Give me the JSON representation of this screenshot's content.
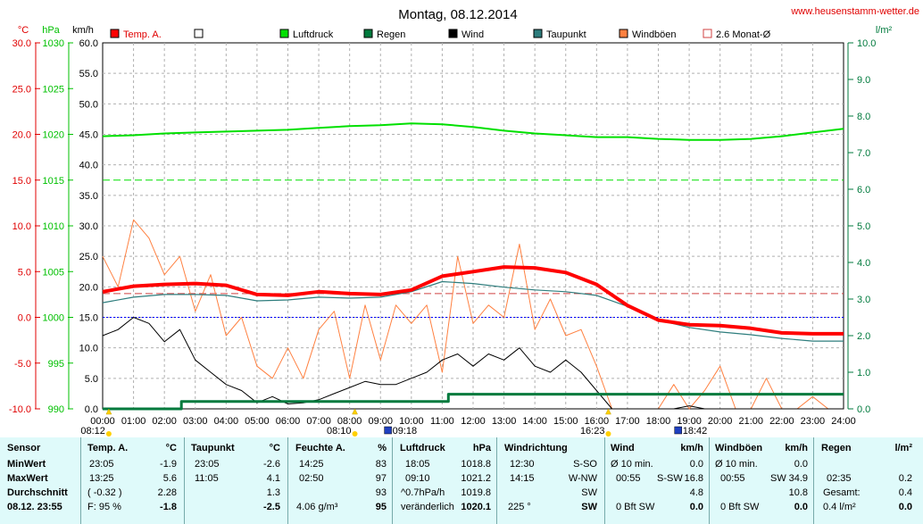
{
  "title": "Montag, 08.12.2014",
  "site": "www.heusenstamm-wetter.de",
  "units": {
    "c": "°C",
    "hpa": "hPa",
    "kmh": "km/h",
    "lm2": "l/m²"
  },
  "colors": {
    "temp": "#ff0000",
    "pressure": "#00e000",
    "rain": "#007a3d",
    "wind": "#000000",
    "dew": "#2e7d7d",
    "gust": "#ff8040",
    "avg": "#d04040"
  },
  "legend": [
    {
      "label": "Temp. A.",
      "color": "#ff0000",
      "style": "box"
    },
    {
      "label": "",
      "color": "#ffffff",
      "style": "box"
    },
    {
      "label": "Luftdruck",
      "color": "#00e000",
      "style": "box"
    },
    {
      "label": "Regen",
      "color": "#007a3d",
      "style": "box"
    },
    {
      "label": "Wind",
      "color": "#000000",
      "style": "box"
    },
    {
      "label": "Taupunkt",
      "color": "#2e7d7d",
      "style": "box"
    },
    {
      "label": "Windböen",
      "color": "#ff8040",
      "style": "box"
    },
    {
      "label": "2.6 Monat-Ø",
      "color": "#d04040",
      "style": "open"
    }
  ],
  "chart_data": {
    "type": "line",
    "title": "Montag, 08.12.2014",
    "x_ticks": [
      "00:00",
      "01:00",
      "02:00",
      "03:00",
      "04:00",
      "05:00",
      "06:00",
      "07:00",
      "08:00",
      "09:00",
      "10:00",
      "11:00",
      "12:00",
      "13:00",
      "14:00",
      "15:00",
      "16:00",
      "17:00",
      "18:00",
      "19:00",
      "20:00",
      "21:00",
      "22:00",
      "23:00",
      "24:00"
    ],
    "y_temp_ticks": [
      "30.0",
      "25.0",
      "20.0",
      "15.0",
      "10.0",
      "5.0",
      "0.0",
      "-5.0",
      "-10.0"
    ],
    "y_press_ticks": [
      "1030",
      "1025",
      "1020",
      "1015",
      "1010",
      "1005",
      "1000",
      "995",
      "990"
    ],
    "y_wind_ticks": [
      "60.0",
      "55.0",
      "50.0",
      "45.0",
      "40.0",
      "35.0",
      "30.0",
      "25.0",
      "20.0",
      "15.0",
      "10.0",
      "5.0",
      "0.0"
    ],
    "y_rain_ticks": [
      "10.0",
      "9.0",
      "8.0",
      "7.0",
      "6.0",
      "5.0",
      "4.0",
      "3.0",
      "2.0",
      "1.0",
      "0.0"
    ],
    "temp_range": [
      -10,
      30
    ],
    "wind_range": [
      0,
      60
    ],
    "pressure_range": [
      990,
      1030
    ],
    "rain_range": [
      0,
      10
    ],
    "reference_lines": [
      {
        "name": "2.6 Monat-Ø",
        "value": 2.6,
        "axis": "temp"
      },
      {
        "name": "",
        "value": 0.0,
        "axis": "temp"
      },
      {
        "name": "",
        "value": 1015,
        "axis": "pressure"
      }
    ],
    "series": [
      {
        "name": "Temp. A.",
        "axis": "temp",
        "points": [
          [
            0,
            2.8
          ],
          [
            1,
            3.4
          ],
          [
            2,
            3.6
          ],
          [
            3,
            3.7
          ],
          [
            4,
            3.5
          ],
          [
            5,
            2.5
          ],
          [
            6,
            2.4
          ],
          [
            7,
            2.8
          ],
          [
            8,
            2.6
          ],
          [
            9,
            2.5
          ],
          [
            10,
            3.0
          ],
          [
            11,
            4.5
          ],
          [
            12,
            5.0
          ],
          [
            13,
            5.5
          ],
          [
            14,
            5.4
          ],
          [
            15,
            4.9
          ],
          [
            16,
            3.6
          ],
          [
            17,
            1.3
          ],
          [
            18,
            -0.3
          ],
          [
            19,
            -0.8
          ],
          [
            20,
            -0.9
          ],
          [
            21,
            -1.2
          ],
          [
            22,
            -1.7
          ],
          [
            23,
            -1.8
          ],
          [
            24,
            -1.8
          ]
        ]
      },
      {
        "name": "Taupunkt",
        "axis": "temp",
        "points": [
          [
            0,
            1.6
          ],
          [
            1,
            2.2
          ],
          [
            2,
            2.5
          ],
          [
            3,
            2.5
          ],
          [
            4,
            2.4
          ],
          [
            5,
            1.8
          ],
          [
            6,
            1.9
          ],
          [
            7,
            2.2
          ],
          [
            8,
            2.1
          ],
          [
            9,
            2.2
          ],
          [
            10,
            2.8
          ],
          [
            11,
            3.9
          ],
          [
            12,
            3.7
          ],
          [
            13,
            3.3
          ],
          [
            14,
            3.0
          ],
          [
            15,
            2.8
          ],
          [
            16,
            2.4
          ],
          [
            17,
            1.2
          ],
          [
            18,
            -0.3
          ],
          [
            19,
            -1.1
          ],
          [
            20,
            -1.6
          ],
          [
            21,
            -1.9
          ],
          [
            22,
            -2.3
          ],
          [
            23,
            -2.6
          ],
          [
            24,
            -2.6
          ]
        ]
      },
      {
        "name": "Luftdruck",
        "axis": "pressure",
        "points": [
          [
            0,
            1019.8
          ],
          [
            1,
            1019.9
          ],
          [
            2,
            1020.1
          ],
          [
            3,
            1020.2
          ],
          [
            4,
            1020.3
          ],
          [
            5,
            1020.4
          ],
          [
            6,
            1020.5
          ],
          [
            7,
            1020.7
          ],
          [
            8,
            1020.9
          ],
          [
            9,
            1021.0
          ],
          [
            10,
            1021.2
          ],
          [
            11,
            1021.1
          ],
          [
            12,
            1020.8
          ],
          [
            13,
            1020.4
          ],
          [
            14,
            1020.1
          ],
          [
            15,
            1019.9
          ],
          [
            16,
            1019.7
          ],
          [
            17,
            1019.7
          ],
          [
            18,
            1019.5
          ],
          [
            19,
            1019.4
          ],
          [
            20,
            1019.4
          ],
          [
            21,
            1019.5
          ],
          [
            22,
            1019.8
          ],
          [
            23,
            1020.2
          ],
          [
            24,
            1020.6
          ]
        ]
      },
      {
        "name": "Wind",
        "axis": "wind",
        "points": [
          [
            0,
            12
          ],
          [
            0.5,
            13
          ],
          [
            1,
            15
          ],
          [
            1.5,
            14
          ],
          [
            2,
            11
          ],
          [
            2.5,
            13
          ],
          [
            3,
            8
          ],
          [
            3.5,
            6
          ],
          [
            4,
            4
          ],
          [
            4.5,
            3
          ],
          [
            5,
            1
          ],
          [
            5.5,
            2
          ],
          [
            6,
            0.8
          ],
          [
            6.5,
            1
          ],
          [
            7,
            1.5
          ],
          [
            7.5,
            2.5
          ],
          [
            8,
            3.5
          ],
          [
            8.5,
            4.5
          ],
          [
            9,
            4
          ],
          [
            9.5,
            4
          ],
          [
            10,
            5
          ],
          [
            10.5,
            6
          ],
          [
            11,
            8
          ],
          [
            11.5,
            9
          ],
          [
            12,
            7
          ],
          [
            12.5,
            9
          ],
          [
            13,
            8
          ],
          [
            13.5,
            10
          ],
          [
            14,
            7
          ],
          [
            14.5,
            6
          ],
          [
            15,
            8
          ],
          [
            15.5,
            6
          ],
          [
            16,
            3
          ],
          [
            16.5,
            0
          ],
          [
            17,
            0
          ],
          [
            17.5,
            0
          ],
          [
            18,
            0
          ],
          [
            18.5,
            0
          ],
          [
            19,
            0.5
          ],
          [
            19.5,
            0
          ],
          [
            20,
            0
          ],
          [
            20.5,
            0
          ],
          [
            21,
            0
          ],
          [
            21.5,
            0
          ],
          [
            22,
            0
          ],
          [
            22.5,
            0
          ],
          [
            23,
            0
          ],
          [
            23.5,
            0
          ],
          [
            24,
            0
          ]
        ]
      },
      {
        "name": "Windböen",
        "axis": "wind",
        "points": [
          [
            0,
            25
          ],
          [
            0.5,
            20
          ],
          [
            1,
            31
          ],
          [
            1.5,
            28
          ],
          [
            2,
            22
          ],
          [
            2.5,
            25
          ],
          [
            3,
            16
          ],
          [
            3.5,
            22
          ],
          [
            4,
            12
          ],
          [
            4.5,
            15
          ],
          [
            5,
            7
          ],
          [
            5.5,
            5
          ],
          [
            6,
            10
          ],
          [
            6.5,
            5
          ],
          [
            7,
            13
          ],
          [
            7.5,
            16
          ],
          [
            8,
            5
          ],
          [
            8.5,
            17
          ],
          [
            9,
            8
          ],
          [
            9.5,
            17
          ],
          [
            10,
            14
          ],
          [
            10.5,
            17
          ],
          [
            11,
            6
          ],
          [
            11.5,
            25
          ],
          [
            12,
            14
          ],
          [
            12.5,
            17
          ],
          [
            13,
            15
          ],
          [
            13.5,
            27
          ],
          [
            14,
            13
          ],
          [
            14.5,
            18
          ],
          [
            15,
            12
          ],
          [
            15.5,
            13
          ],
          [
            16,
            7
          ],
          [
            16.5,
            0
          ],
          [
            17,
            0
          ],
          [
            17.5,
            0
          ],
          [
            18,
            0
          ],
          [
            18.5,
            4
          ],
          [
            19,
            0
          ],
          [
            19.5,
            3
          ],
          [
            20,
            7
          ],
          [
            20.5,
            0
          ],
          [
            21,
            0
          ],
          [
            21.5,
            5
          ],
          [
            22,
            0
          ],
          [
            22.5,
            0
          ],
          [
            23,
            2
          ],
          [
            23.5,
            0
          ],
          [
            24,
            0
          ]
        ]
      },
      {
        "name": "Regen",
        "axis": "rain",
        "points": [
          [
            0,
            0
          ],
          [
            2.55,
            0
          ],
          [
            2.55,
            0.2
          ],
          [
            11.2,
            0.2
          ],
          [
            11.2,
            0.4
          ],
          [
            24,
            0.4
          ]
        ]
      }
    ]
  },
  "markers": [
    {
      "time": "08:12",
      "hour": 0.2,
      "kind": "sunrise",
      "label": "08:12"
    },
    {
      "time": "08:10",
      "hour": 8.17,
      "kind": "sunrise",
      "label": "08:10"
    },
    {
      "time": "09:18",
      "hour": 9.3,
      "kind": "moon",
      "label": "09:18"
    },
    {
      "time": "16:23",
      "hour": 16.38,
      "kind": "sunset",
      "label": "16:23"
    },
    {
      "time": "18:42",
      "hour": 18.7,
      "kind": "moon",
      "label": "18:42"
    }
  ],
  "table": {
    "sensor": {
      "header": "Sensor",
      "rows": [
        "MinWert",
        "MaxWert",
        "Durchschnitt",
        "08.12. 23:55"
      ]
    },
    "temp": {
      "header": "Temp. A.",
      "unit": "°C",
      "rows": [
        [
          "23:05",
          "-1.9"
        ],
        [
          "13:25",
          "5.6"
        ],
        [
          "( -0.32 )",
          "2.28"
        ],
        [
          "F: 95 %",
          "-1.8"
        ]
      ]
    },
    "dew": {
      "header": "Taupunkt",
      "unit": "°C",
      "rows": [
        [
          "23:05",
          "-2.6"
        ],
        [
          "11:05",
          "4.1"
        ],
        [
          "",
          "1.3"
        ],
        [
          "",
          "-2.5"
        ]
      ]
    },
    "humidity": {
      "header": "Feuchte A.",
      "unit": "%",
      "rows": [
        [
          "14:25",
          "83"
        ],
        [
          "02:50",
          "97"
        ],
        [
          "",
          "93"
        ],
        [
          "4.06 g/m³",
          "95"
        ]
      ]
    },
    "pressure": {
      "header": "Luftdruck",
      "unit": "hPa",
      "rows": [
        [
          "18:05",
          "1018.8"
        ],
        [
          "09:10",
          "1021.2"
        ],
        [
          "^0.7hPa/h",
          "1019.8"
        ],
        [
          "veränderlich",
          "1020.1"
        ]
      ]
    },
    "winddir": {
      "header": "Windrichtung",
      "rows": [
        [
          "12:30",
          "S-SO"
        ],
        [
          "14:15",
          "W-NW"
        ],
        [
          "",
          "SW"
        ],
        [
          "225 °",
          "SW"
        ]
      ]
    },
    "wind": {
      "header": "Wind",
      "unit": "km/h",
      "rows": [
        [
          "Ø 10 min.",
          "",
          "0.0"
        ],
        [
          "00:55",
          "S-SW",
          "16.8"
        ],
        [
          "",
          "",
          "4.8"
        ],
        [
          "0 Bft SW",
          "",
          "0.0"
        ]
      ]
    },
    "gust": {
      "header": "Windböen",
      "unit": "km/h",
      "rows": [
        [
          "Ø 10 min.",
          "",
          "0.0"
        ],
        [
          "00:55",
          "SW",
          "34.9"
        ],
        [
          "",
          "",
          "10.8"
        ],
        [
          "0 Bft SW",
          "",
          "0.0"
        ]
      ]
    },
    "rain": {
      "header": "Regen",
      "unit": "l/m²",
      "rows": [
        [
          "",
          "",
          ""
        ],
        [
          "02:35",
          "",
          "0.2"
        ],
        [
          "Gesamt:",
          "",
          "0.4"
        ],
        [
          "0.4 l/m²",
          "",
          "0.0"
        ]
      ]
    }
  }
}
